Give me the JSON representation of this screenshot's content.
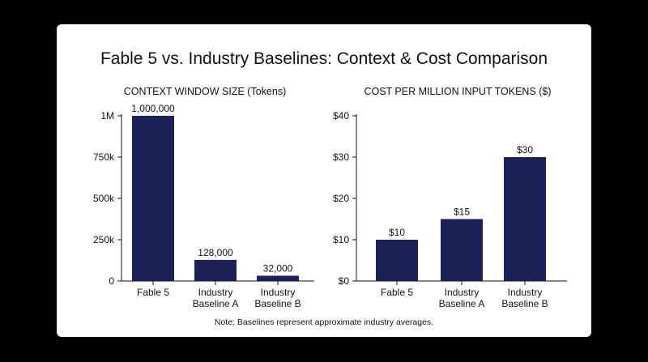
{
  "title": "Fable 5 vs. Industry Baselines: Context & Cost Comparison",
  "note": "Note: Baselines represent approximate industry averages.",
  "colors": {
    "bar": "#1c2057",
    "background": "#000000",
    "card": "#ffffff",
    "axis": "#111111"
  },
  "chart_data": [
    {
      "type": "bar",
      "title": "CONTEXT WINDOW SIZE (Tokens)",
      "categories": [
        [
          "Fable 5"
        ],
        [
          "Industry",
          "Baseline A"
        ],
        [
          "Industry",
          "Baseline B"
        ]
      ],
      "values": [
        1000000,
        128000,
        32000
      ],
      "data_labels": [
        "1,000,000",
        "128,000",
        "32,000"
      ],
      "ylim": [
        0,
        1000000
      ],
      "yticks": [
        0,
        250000,
        500000,
        750000,
        1000000
      ],
      "ytick_labels": [
        "0",
        "250k",
        "500k",
        "750k",
        "1M"
      ],
      "grid": false,
      "xlabel": "",
      "ylabel": ""
    },
    {
      "type": "bar",
      "title": "COST PER MILLION INPUT TOKENS ($)",
      "categories": [
        [
          "Fable 5"
        ],
        [
          "Industry",
          "Baseline A"
        ],
        [
          "Industry",
          "Baseline B"
        ]
      ],
      "values": [
        10,
        15,
        30
      ],
      "data_labels": [
        "$10",
        "$15",
        "$30"
      ],
      "ylim": [
        0,
        40
      ],
      "yticks": [
        0,
        10,
        20,
        30,
        40
      ],
      "ytick_labels": [
        "$0",
        "$10",
        "$20",
        "$30",
        "$40"
      ],
      "grid": false,
      "xlabel": "",
      "ylabel": ""
    }
  ]
}
